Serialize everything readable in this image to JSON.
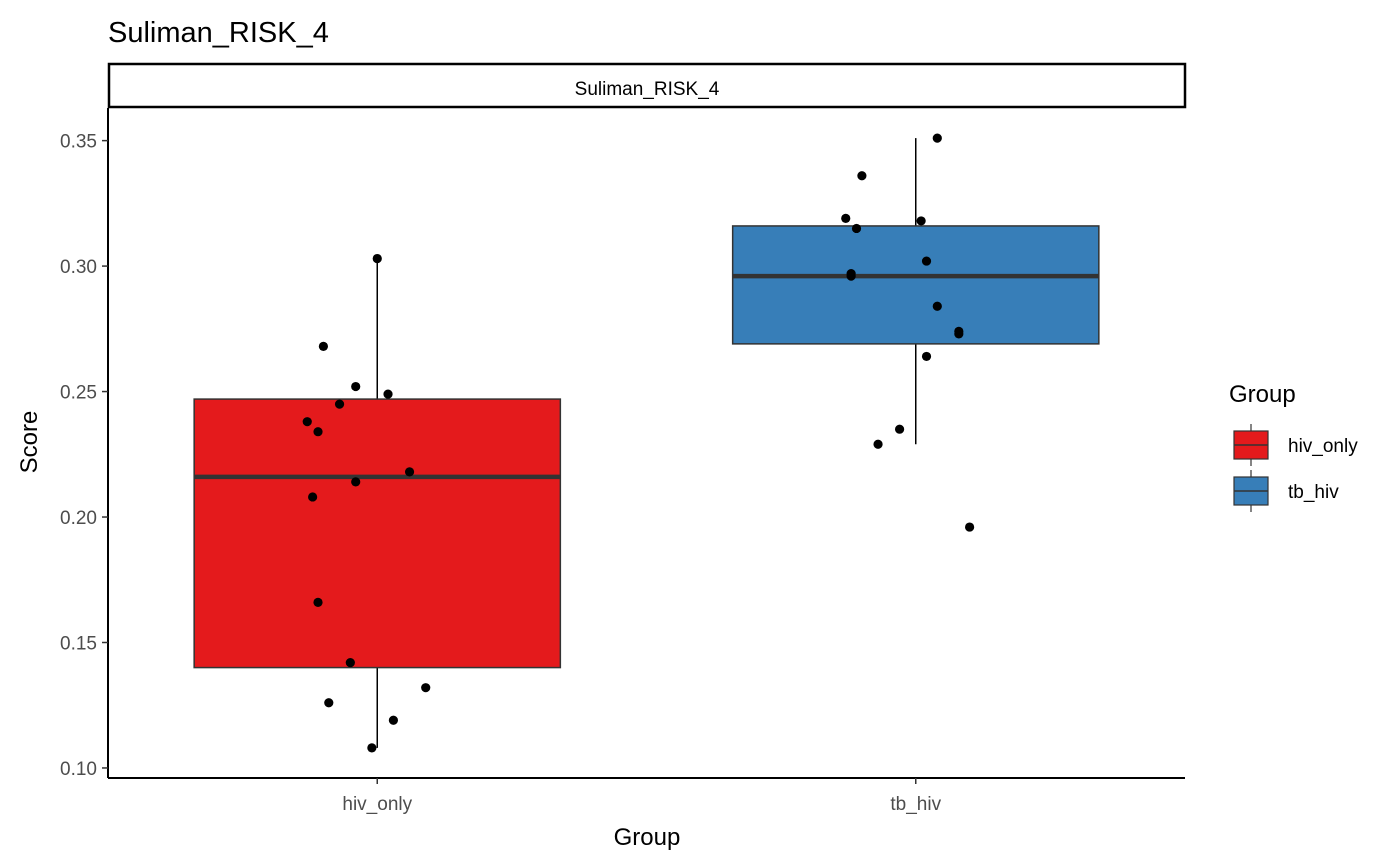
{
  "chart_data": {
    "type": "box",
    "title": "Suliman_RISK_4",
    "facet_label": "Suliman_RISK_4",
    "xlabel": "Group",
    "ylabel": "Score",
    "ylim": [
      0.096,
      0.363
    ],
    "yticks": [
      0.1,
      0.15,
      0.2,
      0.25,
      0.3,
      0.35
    ],
    "ytick_labels": [
      "0.10",
      "0.15",
      "0.20",
      "0.25",
      "0.30",
      "0.35"
    ],
    "categories": [
      "hiv_only",
      "tb_hiv"
    ],
    "legend": {
      "title": "Group",
      "placement": "right",
      "entries": [
        "hiv_only",
        "tb_hiv"
      ]
    },
    "series": [
      {
        "name": "hiv_only",
        "color": "#E41A1C",
        "box": {
          "min": 0.108,
          "q1": 0.14,
          "median": 0.216,
          "q3": 0.247,
          "max": 0.303
        },
        "points": [
          {
            "jitter": 0.0,
            "y": 0.303
          },
          {
            "jitter": -0.1,
            "y": 0.268
          },
          {
            "jitter": -0.04,
            "y": 0.252
          },
          {
            "jitter": 0.02,
            "y": 0.249
          },
          {
            "jitter": -0.07,
            "y": 0.245
          },
          {
            "jitter": -0.13,
            "y": 0.238
          },
          {
            "jitter": -0.11,
            "y": 0.234
          },
          {
            "jitter": 0.06,
            "y": 0.218
          },
          {
            "jitter": -0.04,
            "y": 0.214
          },
          {
            "jitter": -0.12,
            "y": 0.208
          },
          {
            "jitter": -0.11,
            "y": 0.166
          },
          {
            "jitter": -0.05,
            "y": 0.142
          },
          {
            "jitter": 0.09,
            "y": 0.132
          },
          {
            "jitter": -0.09,
            "y": 0.126
          },
          {
            "jitter": 0.03,
            "y": 0.119
          },
          {
            "jitter": -0.01,
            "y": 0.108
          }
        ]
      },
      {
        "name": "tb_hiv",
        "color": "#377EB8",
        "box": {
          "min": 0.229,
          "q1": 0.269,
          "median": 0.296,
          "q3": 0.316,
          "max": 0.351
        },
        "points": [
          {
            "jitter": 0.04,
            "y": 0.351
          },
          {
            "jitter": -0.1,
            "y": 0.336
          },
          {
            "jitter": -0.13,
            "y": 0.319
          },
          {
            "jitter": 0.01,
            "y": 0.318
          },
          {
            "jitter": -0.11,
            "y": 0.315
          },
          {
            "jitter": 0.02,
            "y": 0.302
          },
          {
            "jitter": -0.12,
            "y": 0.297
          },
          {
            "jitter": -0.12,
            "y": 0.296
          },
          {
            "jitter": 0.04,
            "y": 0.284
          },
          {
            "jitter": 0.08,
            "y": 0.274
          },
          {
            "jitter": 0.08,
            "y": 0.273
          },
          {
            "jitter": 0.02,
            "y": 0.264
          },
          {
            "jitter": -0.03,
            "y": 0.235
          },
          {
            "jitter": -0.07,
            "y": 0.229
          },
          {
            "jitter": 0.1,
            "y": 0.196
          }
        ]
      }
    ]
  }
}
